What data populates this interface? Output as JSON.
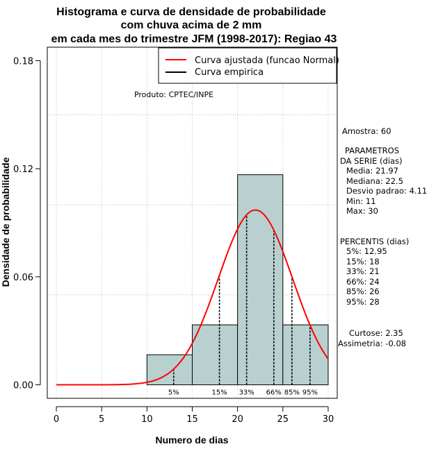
{
  "chart_data": {
    "type": "bar",
    "title_lines": [
      "Histograma e curva de densidade de probabilidade",
      "com chuva acima de 2 mm",
      "em cada mes do trimestre JFM (1998-2017): Regiao 43"
    ],
    "xlabel": "Numero de dias",
    "ylabel": "Densidade de probabilidade",
    "xlim": [
      -1,
      31
    ],
    "ylim": [
      -0.0075,
      0.1875
    ],
    "x_ticks": [
      0,
      5,
      10,
      15,
      20,
      25,
      30
    ],
    "y_ticks": [
      0.0,
      0.06,
      0.12,
      0.18
    ],
    "y_tick_labels": [
      "0.00",
      "0.06",
      "0.12",
      "0.18"
    ],
    "h_grid": [
      0.05,
      0.1,
      0.15
    ],
    "v_grid": [
      0,
      5,
      10,
      15,
      20,
      25,
      30
    ],
    "histogram": [
      {
        "x0": 10,
        "x1": 15,
        "density": 0.0167
      },
      {
        "x0": 15,
        "x1": 20,
        "density": 0.0333
      },
      {
        "x0": 20,
        "x1": 25,
        "density": 0.1167
      },
      {
        "x0": 25,
        "x1": 30,
        "density": 0.0333
      }
    ],
    "normal_fit": {
      "mean": 21.97,
      "sd": 4.11,
      "x_start": 0,
      "x_end": 30
    },
    "percentile_lines": [
      {
        "label": "5%",
        "x": 12.95
      },
      {
        "label": "15%",
        "x": 18
      },
      {
        "label": "33%",
        "x": 21
      },
      {
        "label": "66%",
        "x": 24
      },
      {
        "label": "85%",
        "x": 26
      },
      {
        "label": "95%",
        "x": 28
      }
    ],
    "legend": {
      "position": "top-right",
      "entries": [
        {
          "label": "Curva ajustada (funcao Normal)",
          "color": "#ff0000"
        },
        {
          "label": "Curva empirica",
          "color": "#000000"
        }
      ]
    },
    "annotation": "Produto: CPTEC/INPE",
    "bar_color": "#b8d0d0",
    "curve_color": "#ff0000"
  },
  "stats": {
    "sample": "Amostra: 60",
    "params_header": [
      "PARAMETROS",
      "DA SERIE (dias)"
    ],
    "params": [
      "Media: 21.97",
      "Mediana: 22.5",
      "Desvio padrao: 4.11",
      "Min: 11",
      "Max: 30"
    ],
    "percentis_header": "PERCENTIS (dias)",
    "percentis": [
      "5%: 12.95",
      "15%: 18",
      "33%: 21",
      "66%: 24",
      "85%: 26",
      "95%: 28"
    ],
    "curtose": "Curtose: 2.35",
    "assimetria": "Assimetria: -0.08"
  }
}
